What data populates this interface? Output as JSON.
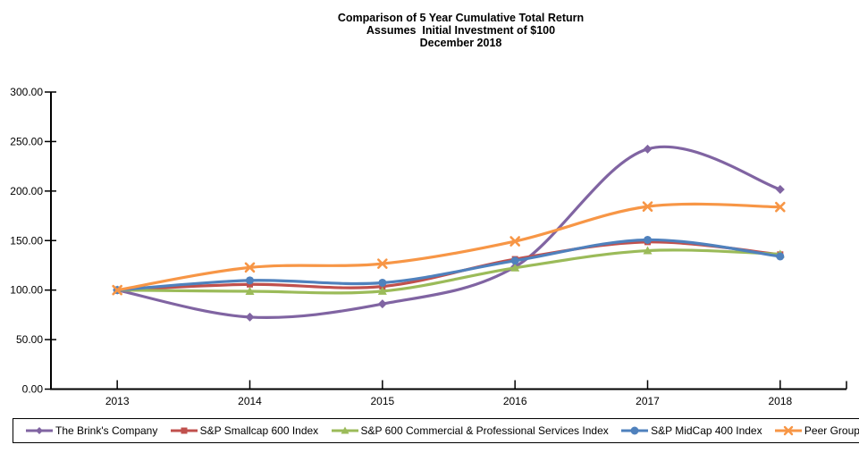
{
  "chart_data": {
    "type": "line",
    "smoothed": true,
    "title_lines": [
      "Comparison of 5 Year Cumulative Total Return",
      "Assumes  Initial Investment of $100",
      "December 2018"
    ],
    "x": [
      "2013",
      "2014",
      "2015",
      "2016",
      "2017",
      "2018"
    ],
    "series": [
      {
        "name": "The Brink's Company",
        "color": "#8064A2",
        "marker": "diamond",
        "values": [
          100.0,
          72.71,
          86.0,
          123.46,
          242.41,
          201.64
        ]
      },
      {
        "name": "S&P Smallcap 600 Index",
        "color": "#C0504D",
        "marker": "square",
        "values": [
          100.0,
          105.76,
          103.67,
          131.2,
          148.56,
          135.96
        ]
      },
      {
        "name": "S&P 600 Commercial & Professional Services Index",
        "color": "#9BBB59",
        "marker": "triangle",
        "values": [
          100.0,
          98.78,
          98.91,
          122.44,
          139.8,
          136.33
        ]
      },
      {
        "name": "S&P MidCap 400 Index",
        "color": "#4F81BD",
        "marker": "circle",
        "values": [
          100.0,
          109.77,
          107.38,
          129.65,
          150.71,
          133.99
        ]
      },
      {
        "name": "Peer Group",
        "color": "#F79646",
        "marker": "x-cross",
        "values": [
          100.0,
          122.84,
          126.66,
          149.27,
          184.38,
          183.92
        ]
      }
    ],
    "ylim": [
      0,
      300
    ],
    "yticks": [
      "0.00",
      "50.00",
      "100.00",
      "150.00",
      "200.00",
      "250.00",
      "300.00"
    ],
    "xlabel": "",
    "ylabel": "",
    "grid": false,
    "legend_position": "bottom",
    "axis_color": "#000000",
    "background_color": "#FFFFFF"
  }
}
